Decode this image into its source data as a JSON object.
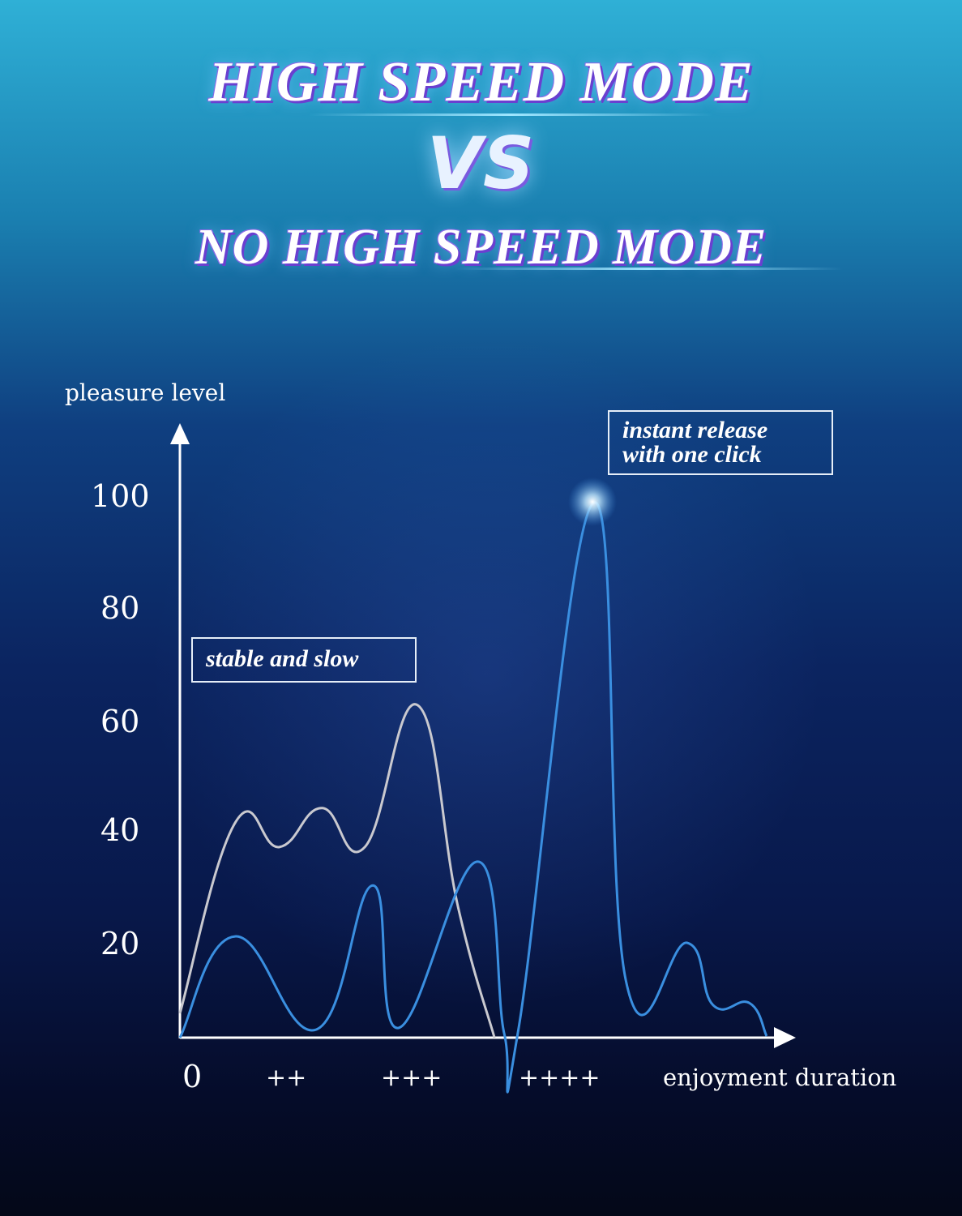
{
  "header": {
    "title_top": "HIGH SPEED MODE",
    "vs": "VS",
    "title_bottom": "NO HIGH SPEED MODE"
  },
  "chart_data": {
    "type": "line",
    "xlabel": "enjoyment duration",
    "ylabel": "pleasure level",
    "x_tick_labels": [
      "0",
      "++",
      "+++",
      "++++"
    ],
    "y_ticks": [
      20,
      40,
      60,
      80,
      100
    ],
    "ylim": [
      0,
      110
    ],
    "xlim": [
      0,
      100
    ],
    "grid": false,
    "series": [
      {
        "key": "no_high_speed",
        "color": "#c9c9cf",
        "points": [
          [
            0,
            4.5
          ],
          [
            9,
            39.7
          ],
          [
            16.2,
            35.2
          ],
          [
            23.1,
            42.4
          ],
          [
            30.1,
            35.2
          ],
          [
            38.7,
            61.4
          ],
          [
            45.3,
            24
          ],
          [
            51.2,
            0
          ]
        ]
      },
      {
        "key": "high_speed",
        "color": "#3a8fe0",
        "points": [
          [
            0,
            0
          ],
          [
            9,
            18.7
          ],
          [
            22.2,
            1.5
          ],
          [
            31.4,
            28.1
          ],
          [
            35.6,
            1.8
          ],
          [
            48.5,
            32.5
          ],
          [
            52.8,
            0.7
          ],
          [
            55.1,
            1.5
          ],
          [
            67.4,
            98.8
          ],
          [
            72.6,
            10.5
          ],
          [
            82.6,
            17.5
          ],
          [
            86.8,
            6
          ],
          [
            92.7,
            6.4
          ],
          [
            95.5,
            0.3
          ]
        ]
      }
    ],
    "annotations": [
      {
        "text": "stable and slow"
      },
      {
        "text_line1": "instant release",
        "text_line2": "with one click"
      }
    ]
  }
}
